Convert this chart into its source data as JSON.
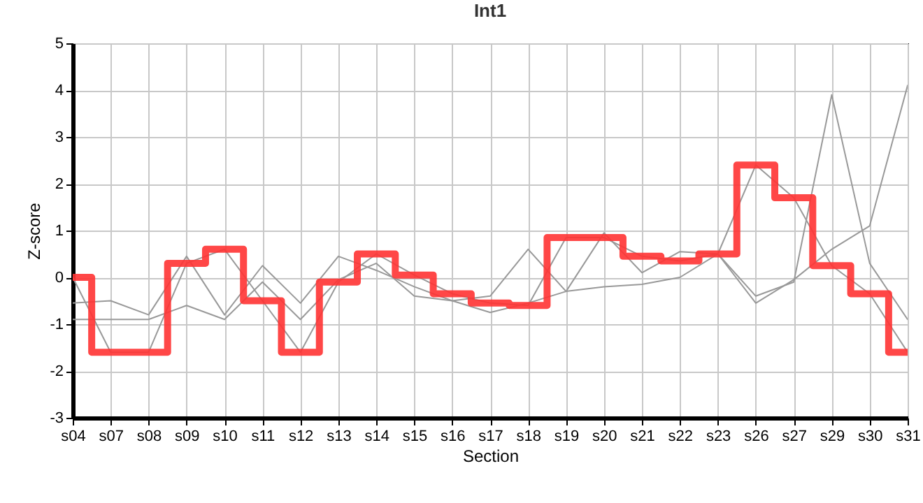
{
  "chart_data": {
    "type": "line",
    "title": "Int1",
    "xlabel": "Section",
    "ylabel": "Z-score",
    "categories": [
      "s04",
      "s07",
      "s08",
      "s09",
      "s10",
      "s11",
      "s12",
      "s13",
      "s14",
      "s15",
      "s16",
      "s17",
      "s18",
      "s19",
      "s20",
      "s21",
      "s22",
      "s23",
      "s26",
      "s27",
      "s29",
      "s30",
      "s31"
    ],
    "ylim": [
      -3,
      5
    ],
    "yticks": [
      -3,
      -2,
      -1,
      0,
      1,
      2,
      3,
      4,
      5
    ],
    "grid": true,
    "series": [
      {
        "color": "#999999",
        "values": [
          0,
          -1.6,
          -1.6,
          0.3,
          0.6,
          -0.5,
          -1.6,
          -0.1,
          0.5,
          0.05,
          -0.35,
          -0.55,
          -0.6,
          0.85,
          0.85,
          0.45,
          0.35,
          0.5,
          2.4,
          1.7,
          0.25,
          -0.35,
          -1.6
        ]
      },
      {
        "color": "#999999",
        "values": [
          -0.55,
          -0.5,
          -0.8,
          0.45,
          -0.8,
          0.25,
          -0.55,
          0.45,
          0.15,
          -0.2,
          -0.5,
          -0.4,
          0.6,
          -0.3,
          0.95,
          0.1,
          0.55,
          0.5,
          -0.4,
          -0.1,
          3.9,
          0.3,
          -0.9
        ]
      },
      {
        "color": "#999999",
        "values": [
          -0.9,
          -0.9,
          -0.9,
          -0.6,
          -0.9,
          -0.1,
          -0.9,
          -0.05,
          0.3,
          -0.4,
          -0.5,
          -0.75,
          -0.55,
          -0.3,
          -0.2,
          -0.15,
          0,
          0.5,
          -0.55,
          -0.05,
          0.6,
          1.1,
          4.1
        ]
      },
      {
        "type": "step",
        "color": "#ff3333",
        "values": [
          0,
          -1.6,
          -1.6,
          0.3,
          0.6,
          -0.5,
          -1.6,
          -0.1,
          0.5,
          0.05,
          -0.35,
          -0.55,
          -0.6,
          0.85,
          0.85,
          0.45,
          0.35,
          0.5,
          2.4,
          1.7,
          0.25,
          -0.35,
          -1.6
        ]
      }
    ]
  }
}
